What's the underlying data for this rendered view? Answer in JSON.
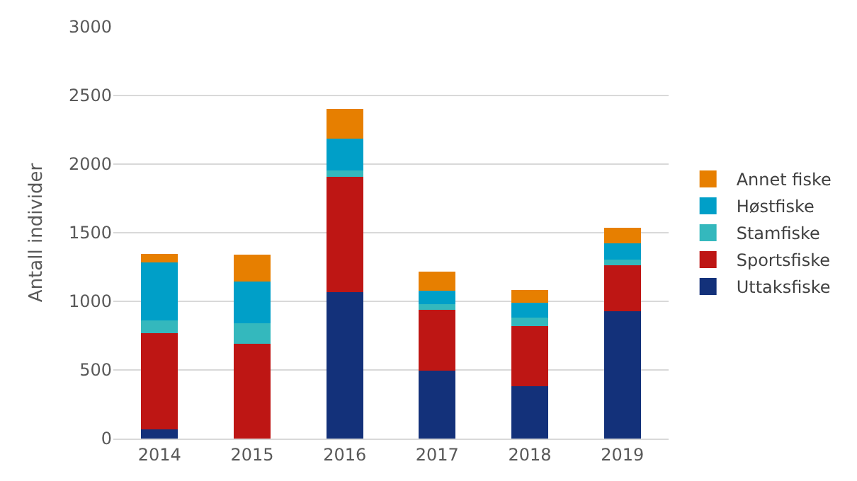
{
  "chart_data": {
    "type": "bar",
    "stacked": true,
    "ylabel": "Antall individer",
    "categories": [
      "2014",
      "2015",
      "2016",
      "2017",
      "2018",
      "2019"
    ],
    "series": [
      {
        "name": "Uttaksfiske",
        "color": "#13317a",
        "values": [
          65,
          0,
          1065,
          495,
          380,
          930
        ]
      },
      {
        "name": "Sportsfiske",
        "color": "#be1614",
        "values": [
          705,
          690,
          840,
          445,
          440,
          335
        ]
      },
      {
        "name": "Stamfiske",
        "color": "#34b8bd",
        "values": [
          90,
          150,
          50,
          40,
          60,
          40
        ]
      },
      {
        "name": "Høstfiske",
        "color": "#009fc8",
        "values": [
          425,
          305,
          230,
          95,
          110,
          120
        ]
      },
      {
        "name": "Annet fiske",
        "color": "#e77f00",
        "values": [
          60,
          195,
          215,
          140,
          95,
          110
        ]
      }
    ],
    "ylim": [
      0,
      3000
    ],
    "yticks": [
      0,
      500,
      1000,
      1500,
      2000,
      2500,
      3000
    ],
    "grid": "y",
    "legend": "right"
  }
}
